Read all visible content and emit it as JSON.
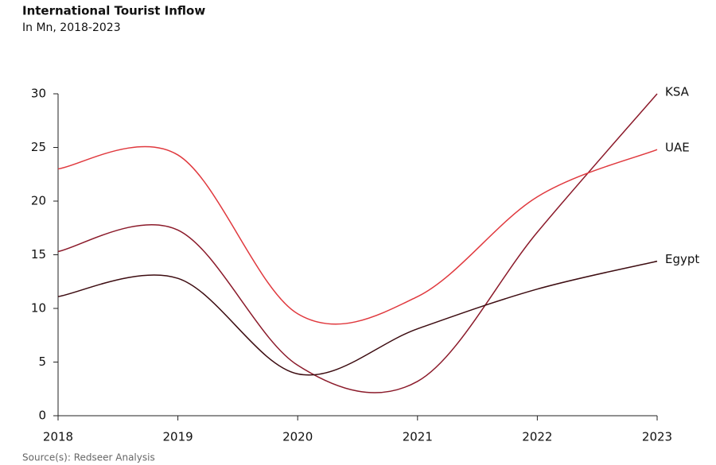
{
  "chart_data": {
    "type": "line",
    "title": "International Tourist Inflow",
    "subtitle": "In Mn, 2018-2023",
    "source": "Source(s): Redseer Analysis",
    "x": [
      2018,
      2019,
      2020,
      2021,
      2022,
      2023
    ],
    "xlim": [
      2018,
      2023
    ],
    "xticks": [
      2018,
      2019,
      2020,
      2021,
      2022,
      2023
    ],
    "ylim": [
      0,
      30
    ],
    "yticks": [
      0,
      5,
      10,
      15,
      20,
      25,
      30
    ],
    "series": [
      {
        "name": "KSA",
        "color": "#8b1a2a",
        "values": [
          15.3,
          17.3,
          4.7,
          3.2,
          17.1,
          30
        ]
      },
      {
        "name": "UAE",
        "color": "#e0393e",
        "values": [
          23.0,
          24.3,
          9.5,
          11.1,
          20.4,
          24.8
        ]
      },
      {
        "name": "Egypt",
        "color": "#3d0c11",
        "values": [
          11.1,
          12.8,
          3.9,
          8.1,
          11.8,
          14.4
        ]
      }
    ]
  }
}
